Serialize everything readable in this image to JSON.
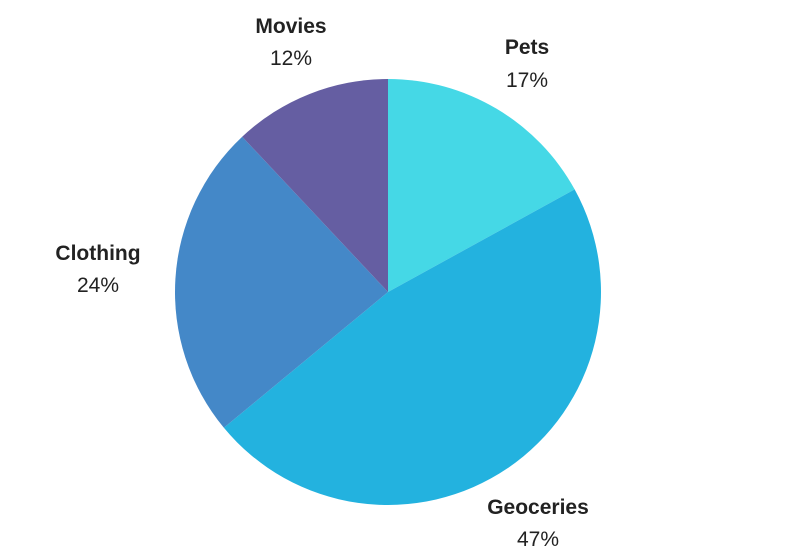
{
  "chart_data": {
    "type": "pie",
    "title": "",
    "start_angle_deg": 0,
    "direction": "clockwise",
    "slices": [
      {
        "label": "Pets",
        "value": 17,
        "value_label": "17%",
        "color": "#45d8e6"
      },
      {
        "label": "Geoceries",
        "value": 47,
        "value_label": "47%",
        "color": "#23b2df"
      },
      {
        "label": "Clothing",
        "value": 24,
        "value_label": "24%",
        "color": "#4488c8"
      },
      {
        "label": "Movies",
        "value": 12,
        "value_label": "12%",
        "color": "#655ea2"
      }
    ]
  }
}
